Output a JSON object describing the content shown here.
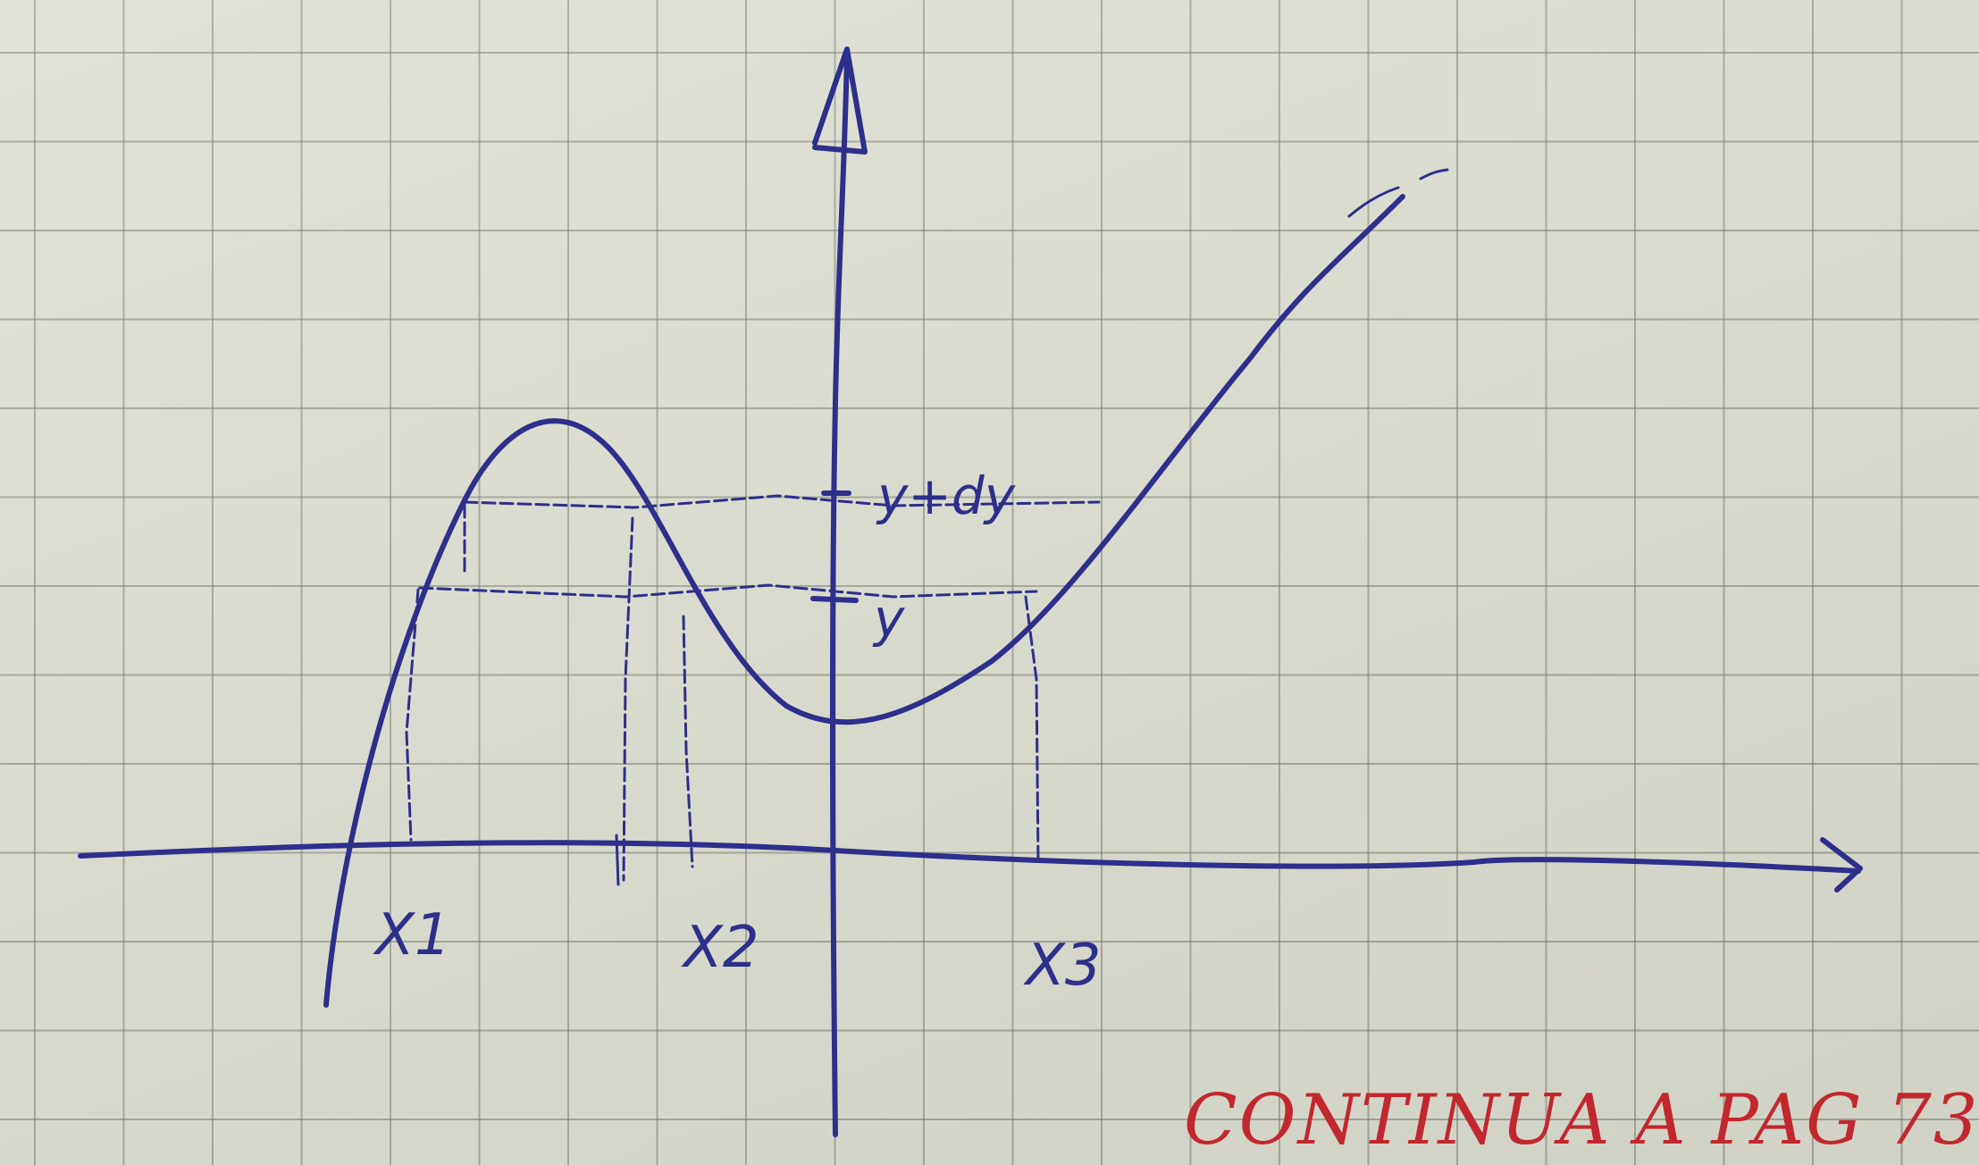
{
  "labels": {
    "x1": "X1",
    "x2": "X2",
    "x3": "X3",
    "y": "y",
    "y_plus_dy": "y+dy"
  },
  "note": "CONTINUA A PAG 73.",
  "colors": {
    "ink": "#2d2f8a",
    "note_ink": "#c2272d",
    "paper": "#dedfd2",
    "grid": "#7a7c6e"
  }
}
